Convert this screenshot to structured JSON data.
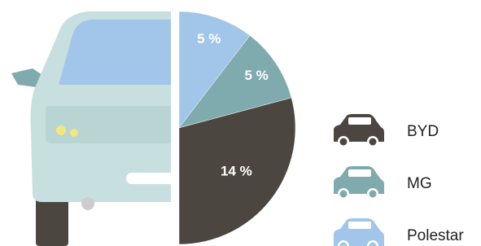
{
  "chart_data": {
    "type": "pie",
    "categories": [
      "BYD",
      "MG",
      "Polestar"
    ],
    "values": [
      14,
      5,
      5
    ],
    "value_labels": [
      "14 %",
      "5 %",
      "5 %"
    ],
    "colors": [
      "#4b4740",
      "#7faaae",
      "#a2c5ea"
    ]
  }
}
